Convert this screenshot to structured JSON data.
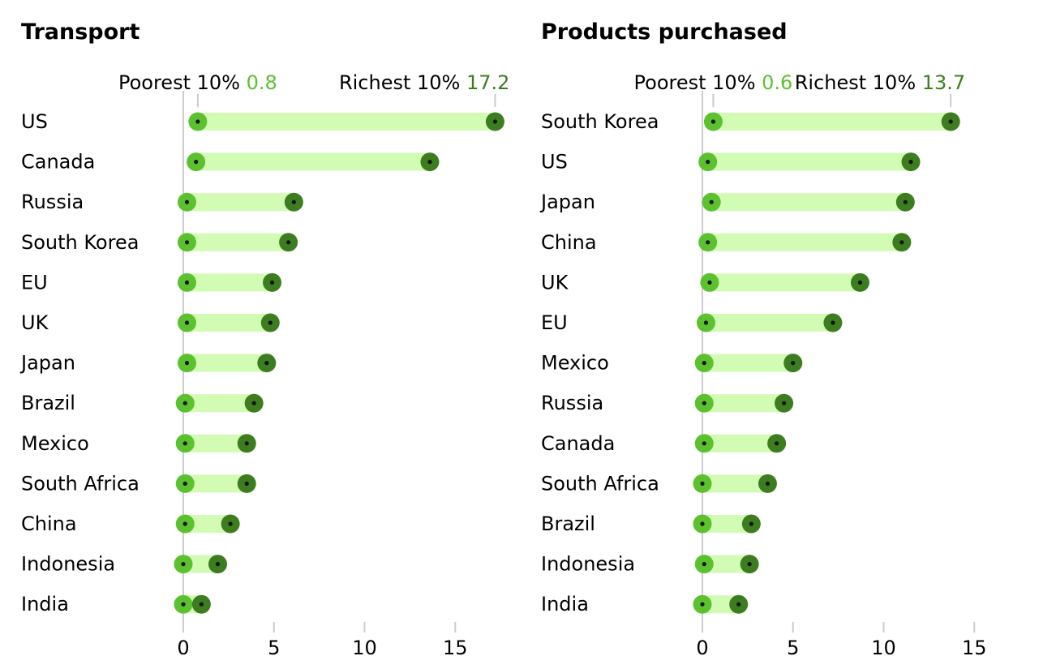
{
  "colors": {
    "poor": "#5cc12f",
    "rich": "#3c7d1f",
    "band": "#d2fbb4",
    "axis": "#cccccc",
    "dot": "#121212",
    "text": "#121212"
  },
  "chart_data": [
    {
      "type": "dumbbell",
      "title": "Transport",
      "x_ticks": [
        0,
        5,
        10,
        15
      ],
      "xlim": [
        0,
        17.5
      ],
      "legend": {
        "poor_label": "Poorest 10%",
        "poor_value": "0.8",
        "rich_label": "Richest 10%",
        "rich_value": "17.2"
      },
      "categories": [
        "US",
        "Canada",
        "Russia",
        "South Korea",
        "EU",
        "UK",
        "Japan",
        "Brazil",
        "Mexico",
        "South Africa",
        "China",
        "Indonesia",
        "India"
      ],
      "series": [
        {
          "name": "Poorest 10%",
          "values": [
            0.8,
            0.7,
            0.2,
            0.2,
            0.2,
            0.2,
            0.2,
            0.1,
            0.1,
            0.1,
            0.1,
            0.0,
            0.0
          ]
        },
        {
          "name": "Richest 10%",
          "values": [
            17.2,
            13.6,
            6.1,
            5.8,
            4.9,
            4.8,
            4.6,
            3.9,
            3.5,
            3.5,
            2.6,
            1.9,
            1.0
          ]
        }
      ]
    },
    {
      "type": "dumbbell",
      "title": "Products purchased",
      "x_ticks": [
        0,
        5,
        10,
        15
      ],
      "xlim": [
        0,
        17.5
      ],
      "legend": {
        "poor_label": "Poorest 10%",
        "poor_value": "0.6",
        "rich_label": "Richest 10%",
        "rich_value": "13.7"
      },
      "categories": [
        "South Korea",
        "US",
        "Japan",
        "China",
        "UK",
        "EU",
        "Mexico",
        "Russia",
        "Canada",
        "South Africa",
        "Brazil",
        "Indonesia",
        "India"
      ],
      "series": [
        {
          "name": "Poorest 10%",
          "values": [
            0.6,
            0.3,
            0.5,
            0.3,
            0.4,
            0.2,
            0.1,
            0.1,
            0.1,
            0.0,
            0.0,
            0.1,
            0.0
          ]
        },
        {
          "name": "Richest 10%",
          "values": [
            13.7,
            11.5,
            11.2,
            11.0,
            8.7,
            7.2,
            5.0,
            4.5,
            4.1,
            3.6,
            2.7,
            2.6,
            2.0
          ]
        }
      ]
    }
  ]
}
